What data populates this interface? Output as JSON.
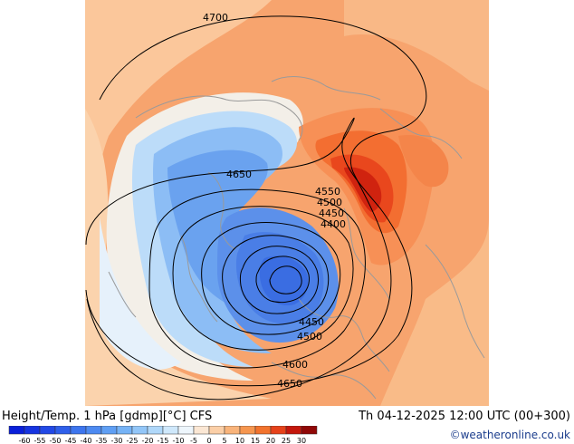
{
  "map": {
    "contour_labels": [
      "4700",
      "4650",
      "4550",
      "4500",
      "4450",
      "4400",
      "4450",
      "4500",
      "4600",
      "4650"
    ]
  },
  "footer": {
    "title": "Height/Temp. 1 hPa [gdmp][°C] CFS",
    "valid_time": "Th 04-12-2025 12:00 UTC (00+300)",
    "credit": "©weatheronline.co.uk"
  },
  "colorbar": {
    "tick_labels": [
      "-60",
      "-55",
      "-50",
      "-45",
      "-40",
      "-35",
      "-30",
      "-25",
      "-20",
      "-15",
      "-10",
      "-5",
      "0",
      "5",
      "10",
      "15",
      "20",
      "25",
      "30"
    ],
    "colors": [
      "#0a1fd9",
      "#1634e0",
      "#2249e6",
      "#2f5fea",
      "#3d75ee",
      "#4d8af1",
      "#5f9ff4",
      "#76b3f6",
      "#92c6f8",
      "#b0d8fa",
      "#cfe8fb",
      "#eef6fc",
      "#fbe7d4",
      "#fbcfa7",
      "#f9b47b",
      "#f6964f",
      "#f2732d",
      "#e6421a",
      "#c4170c",
      "#900807"
    ]
  }
}
